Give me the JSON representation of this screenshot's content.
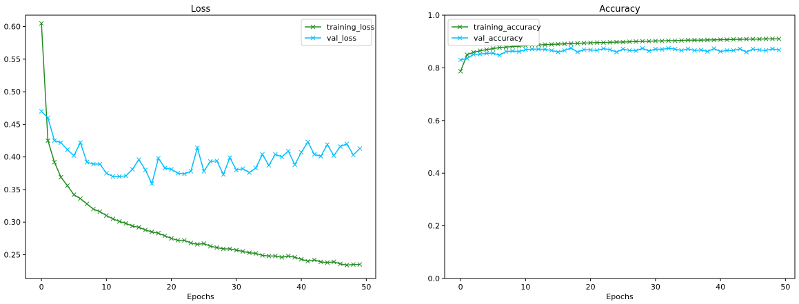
{
  "chart_data": [
    {
      "type": "line",
      "title": "Loss",
      "xlabel": "Epochs",
      "ylabel": "",
      "xlim": [
        -2.45,
        51.45
      ],
      "ylim": [
        0.2135,
        0.6175
      ],
      "xticks": [
        0,
        10,
        20,
        30,
        40,
        50
      ],
      "yticks": [
        0.25,
        0.3,
        0.35,
        0.4,
        0.45,
        0.5,
        0.55,
        0.6
      ],
      "ytick_labels": [
        "0.25",
        "0.30",
        "0.35",
        "0.40",
        "0.45",
        "0.50",
        "0.55",
        "0.60"
      ],
      "grid": false,
      "legend_position": "upper right",
      "x": [
        0,
        1,
        2,
        3,
        4,
        5,
        6,
        7,
        8,
        9,
        10,
        11,
        12,
        13,
        14,
        15,
        16,
        17,
        18,
        19,
        20,
        21,
        22,
        23,
        24,
        25,
        26,
        27,
        28,
        29,
        30,
        31,
        32,
        33,
        34,
        35,
        36,
        37,
        38,
        39,
        40,
        41,
        42,
        43,
        44,
        45,
        46,
        47,
        48,
        49
      ],
      "series": [
        {
          "name": "training_loss",
          "color": "#228B22",
          "marker": "x",
          "values": [
            0.605,
            0.425,
            0.392,
            0.369,
            0.356,
            0.342,
            0.336,
            0.328,
            0.32,
            0.316,
            0.31,
            0.305,
            0.301,
            0.298,
            0.294,
            0.292,
            0.288,
            0.285,
            0.283,
            0.279,
            0.275,
            0.272,
            0.272,
            0.268,
            0.266,
            0.267,
            0.263,
            0.261,
            0.259,
            0.259,
            0.257,
            0.255,
            0.253,
            0.252,
            0.249,
            0.248,
            0.248,
            0.246,
            0.248,
            0.246,
            0.243,
            0.24,
            0.242,
            0.239,
            0.238,
            0.239,
            0.236,
            0.234,
            0.235,
            0.235
          ]
        },
        {
          "name": "val_loss",
          "color": "#00BFFF",
          "marker": "x",
          "values": [
            0.47,
            0.46,
            0.425,
            0.422,
            0.411,
            0.402,
            0.422,
            0.392,
            0.389,
            0.389,
            0.375,
            0.37,
            0.37,
            0.371,
            0.381,
            0.396,
            0.38,
            0.359,
            0.398,
            0.383,
            0.381,
            0.375,
            0.374,
            0.378,
            0.414,
            0.378,
            0.393,
            0.394,
            0.373,
            0.399,
            0.38,
            0.382,
            0.376,
            0.383,
            0.404,
            0.387,
            0.404,
            0.4,
            0.409,
            0.388,
            0.407,
            0.423,
            0.404,
            0.401,
            0.419,
            0.402,
            0.416,
            0.42,
            0.403,
            0.413
          ]
        }
      ]
    },
    {
      "type": "line",
      "title": "Accuracy",
      "xlabel": "Epochs",
      "ylabel": "",
      "xlim": [
        -2.45,
        51.45
      ],
      "ylim": [
        0,
        1
      ],
      "xticks": [
        0,
        10,
        20,
        30,
        40,
        50
      ],
      "yticks": [
        0,
        0.2,
        0.4,
        0.6,
        0.8,
        1.0
      ],
      "ytick_labels": [
        "0.0",
        "0.2",
        "0.4",
        "0.6",
        "0.8",
        "1.0"
      ],
      "grid": false,
      "legend_position": "upper left",
      "x": [
        0,
        1,
        2,
        3,
        4,
        5,
        6,
        7,
        8,
        9,
        10,
        11,
        12,
        13,
        14,
        15,
        16,
        17,
        18,
        19,
        20,
        21,
        22,
        23,
        24,
        25,
        26,
        27,
        28,
        29,
        30,
        31,
        32,
        33,
        34,
        35,
        36,
        37,
        38,
        39,
        40,
        41,
        42,
        43,
        44,
        45,
        46,
        47,
        48,
        49
      ],
      "series": [
        {
          "name": "training_accuracy",
          "color": "#228B22",
          "marker": "x",
          "values": [
            0.787,
            0.85,
            0.859,
            0.865,
            0.869,
            0.873,
            0.877,
            0.879,
            0.881,
            0.882,
            0.884,
            0.886,
            0.887,
            0.888,
            0.889,
            0.89,
            0.891,
            0.892,
            0.893,
            0.894,
            0.895,
            0.896,
            0.896,
            0.897,
            0.898,
            0.898,
            0.899,
            0.9,
            0.901,
            0.901,
            0.902,
            0.902,
            0.903,
            0.903,
            0.904,
            0.905,
            0.905,
            0.905,
            0.906,
            0.906,
            0.907,
            0.907,
            0.908,
            0.908,
            0.909,
            0.909,
            0.909,
            0.91,
            0.91,
            0.91
          ]
        },
        {
          "name": "val_accuracy",
          "color": "#00BFFF",
          "marker": "x",
          "values": [
            0.83,
            0.836,
            0.851,
            0.852,
            0.855,
            0.856,
            0.848,
            0.862,
            0.864,
            0.862,
            0.869,
            0.871,
            0.871,
            0.87,
            0.866,
            0.86,
            0.866,
            0.875,
            0.86,
            0.869,
            0.868,
            0.866,
            0.873,
            0.869,
            0.86,
            0.871,
            0.866,
            0.865,
            0.874,
            0.864,
            0.871,
            0.87,
            0.874,
            0.871,
            0.866,
            0.872,
            0.866,
            0.868,
            0.862,
            0.873,
            0.862,
            0.866,
            0.866,
            0.872,
            0.86,
            0.871,
            0.868,
            0.866,
            0.872,
            0.868
          ]
        }
      ]
    }
  ]
}
